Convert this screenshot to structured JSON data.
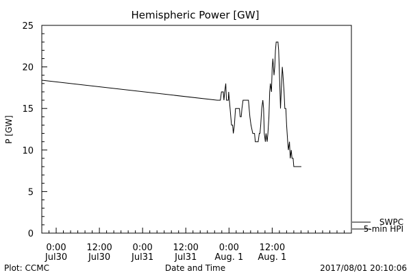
{
  "chart_data": {
    "type": "line",
    "title": "Hemispheric Power [GW]",
    "ylabel": "P [GW]",
    "xlabel": "Date and Time",
    "ylim": [
      0,
      25
    ],
    "yticks": [
      0,
      5,
      10,
      15,
      20,
      25
    ],
    "y_minor_step": 1,
    "xlim_hours": [
      -4,
      82
    ],
    "xticks": [
      {
        "hour": 0,
        "time": "0:00",
        "date": "Jul30"
      },
      {
        "hour": 12,
        "time": "12:00",
        "date": "Jul30"
      },
      {
        "hour": 24,
        "time": "0:00",
        "date": "Jul31"
      },
      {
        "hour": 36,
        "time": "12:00",
        "date": "Jul31"
      },
      {
        "hour": 48,
        "time": "0:00",
        "date": "Aug. 1"
      },
      {
        "hour": 60,
        "time": "12:00",
        "date": "Aug. 1"
      }
    ],
    "x_minor_step_hours": 2,
    "grid": false,
    "legend_position": "bottom-right",
    "series": [
      {
        "name": "SWPC",
        "color": "#000000",
        "points": []
      },
      {
        "name": "5-min HPI",
        "color": "#000000",
        "points": [
          [
            -4.0,
            18.4
          ],
          [
            44.7,
            16.0
          ],
          [
            45.6,
            16.0
          ],
          [
            45.9,
            17.0
          ],
          [
            46.4,
            17.0
          ],
          [
            46.6,
            16.0
          ],
          [
            46.8,
            17.0
          ],
          [
            47.1,
            18.0
          ],
          [
            47.3,
            16.0
          ],
          [
            47.8,
            16.0
          ],
          [
            47.9,
            17.0
          ],
          [
            48.3,
            15.0
          ],
          [
            48.5,
            14.0
          ],
          [
            48.7,
            13.0
          ],
          [
            49.0,
            13.0
          ],
          [
            49.2,
            12.0
          ],
          [
            49.5,
            13.0
          ],
          [
            49.8,
            15.0
          ],
          [
            50.9,
            15.0
          ],
          [
            51.1,
            14.0
          ],
          [
            51.4,
            14.0
          ],
          [
            51.6,
            15.0
          ],
          [
            51.9,
            16.0
          ],
          [
            53.4,
            16.0
          ],
          [
            53.6,
            15.0
          ],
          [
            53.8,
            14.0
          ],
          [
            54.1,
            13.0
          ],
          [
            54.6,
            12.0
          ],
          [
            55.1,
            12.0
          ],
          [
            55.3,
            11.0
          ],
          [
            56.1,
            11.0
          ],
          [
            56.4,
            12.0
          ],
          [
            56.6,
            12.0
          ],
          [
            56.8,
            13.0
          ],
          [
            57.1,
            15.0
          ],
          [
            57.4,
            16.0
          ],
          [
            57.6,
            15.0
          ],
          [
            57.8,
            12.0
          ],
          [
            58.1,
            11.0
          ],
          [
            58.3,
            12.0
          ],
          [
            58.6,
            11.0
          ],
          [
            58.8,
            12.0
          ],
          [
            59.1,
            14.0
          ],
          [
            59.3,
            17.0
          ],
          [
            59.5,
            18.0
          ],
          [
            59.8,
            17.0
          ],
          [
            60.0,
            20.0
          ],
          [
            60.2,
            21.0
          ],
          [
            60.5,
            19.0
          ],
          [
            60.7,
            20.0
          ],
          [
            60.9,
            22.0
          ],
          [
            61.1,
            23.0
          ],
          [
            61.6,
            23.0
          ],
          [
            61.8,
            22.0
          ],
          [
            62.1,
            18.0
          ],
          [
            62.3,
            15.0
          ],
          [
            62.5,
            17.0
          ],
          [
            62.8,
            20.0
          ],
          [
            63.0,
            19.0
          ],
          [
            63.3,
            17.0
          ],
          [
            63.5,
            15.0
          ],
          [
            63.8,
            15.0
          ],
          [
            64.0,
            13.0
          ],
          [
            64.3,
            11.0
          ],
          [
            64.5,
            10.0
          ],
          [
            64.8,
            11.0
          ],
          [
            65.0,
            9.0
          ],
          [
            65.3,
            10.0
          ],
          [
            65.5,
            9.0
          ],
          [
            65.8,
            9.0
          ],
          [
            66.0,
            8.0
          ],
          [
            68.1,
            8.0
          ]
        ]
      }
    ],
    "footer_left": "Plot: CCMC",
    "footer_right": "2017/08/01 20:10:06"
  }
}
